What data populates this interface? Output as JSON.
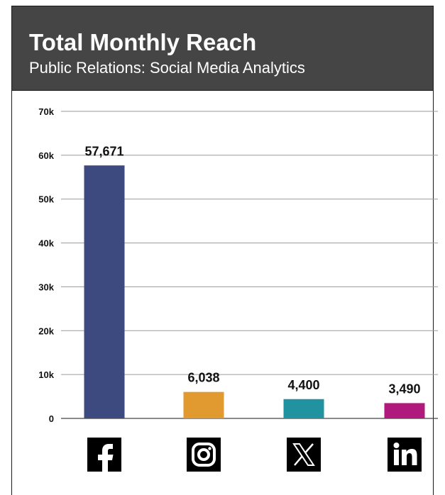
{
  "header": {
    "title": "Total Monthly Reach",
    "subtitle": "Public Relations: Social Media Analytics"
  },
  "chart_data": {
    "type": "bar",
    "title": "Total Monthly Reach",
    "subtitle": "Public Relations: Social Media Analytics",
    "categories": [
      "Facebook",
      "Instagram",
      "X",
      "LinkedIn"
    ],
    "category_icons": [
      "facebook-icon",
      "instagram-icon",
      "x-icon",
      "linkedin-icon"
    ],
    "values": [
      57671,
      6038,
      4400,
      3490
    ],
    "data_labels": [
      "57,671",
      "6,038",
      "4,400",
      "3,490"
    ],
    "colors": [
      "#3d4a7f",
      "#e09a30",
      "#2193a0",
      "#b01a7d"
    ],
    "ylim": [
      0,
      70000
    ],
    "yticks": [
      0,
      10000,
      20000,
      30000,
      40000,
      50000,
      60000,
      70000
    ],
    "ytick_labels": [
      "0",
      "10k",
      "20k",
      "30k",
      "40k",
      "50k",
      "60k",
      "70k"
    ],
    "grid": true,
    "legend": "none"
  }
}
